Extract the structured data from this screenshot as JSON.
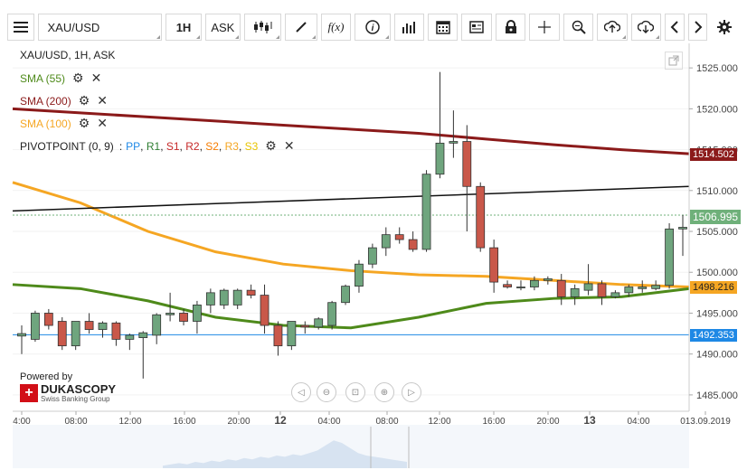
{
  "toolbar": {
    "menu_icon": "hamburger-icon",
    "symbol": "XAU/USD",
    "timeframe": "1H",
    "side": "ASK",
    "buttons": [
      "candlestick-type-icon",
      "draw-tool-icon",
      "function-icon",
      "info-icon",
      "bar-chart-icon",
      "calendar-icon",
      "document-icon",
      "lock-icon",
      "crosshair-icon",
      "zoom-icon",
      "upload-icon",
      "download-icon",
      "prev-icon",
      "next-icon",
      "settings-icon"
    ],
    "fx_label": "f(x)"
  },
  "chart_header": "XAU/USD, 1H, ASK",
  "indicators": [
    {
      "label": "SMA (55)",
      "color": "#4e8a1a"
    },
    {
      "label": "SMA (200)",
      "color": "#8b1a1a"
    },
    {
      "label": "SMA (100)",
      "color": "#f5a623"
    }
  ],
  "pivot": {
    "label": "PIVOTPOINT (0, 9)",
    "sep": ":",
    "items": [
      {
        "label": "PP",
        "color": "#1e88e5"
      },
      {
        "label": "R1",
        "color": "#2e7d32"
      },
      {
        "label": "S1",
        "color": "#c62828"
      },
      {
        "label": "R2",
        "color": "#c62828"
      },
      {
        "label": "S2",
        "color": "#f57c00"
      },
      {
        "label": "R3",
        "color": "#f5a623"
      },
      {
        "label": "S3",
        "color": "#e8c400"
      }
    ]
  },
  "powered_by": "Powered by",
  "brand": {
    "name": "DUKASCOPY",
    "sub": "Swiss Banking Group"
  },
  "price_axis": [
    "1525.000",
    "1520.000",
    "1515.000",
    "1510.000",
    "1505.000",
    "1500.000",
    "1495.000",
    "1490.000",
    "1485.000"
  ],
  "price_tags": [
    {
      "value": "1514.502",
      "color": "#8b1a1a"
    },
    {
      "value": "1506.995",
      "color": "#6fb07a"
    },
    {
      "value": "1498.216",
      "color": "#f5a623"
    },
    {
      "value": "1492.353",
      "color": "#1e88e5"
    }
  ],
  "time_axis": [
    "4:00",
    "08:00",
    "12:00",
    "16:00",
    "20:00",
    "12",
    "04:00",
    "08:00",
    "12:00",
    "16:00",
    "20:00",
    "13",
    "04:00",
    "013.09.2019"
  ],
  "nav_controls": [
    "scroll-left-icon",
    "zoom-out-icon",
    "fit-icon",
    "zoom-in-icon",
    "scroll-right-icon"
  ],
  "chart_data": {
    "type": "candlestick",
    "symbol": "XAU/USD",
    "interval": "1H",
    "ylim": [
      1483,
      1528
    ],
    "candles": [
      {
        "o": 1492.2,
        "h": 1493.5,
        "l": 1490.0,
        "c": 1492.5
      },
      {
        "o": 1491.8,
        "h": 1495.3,
        "l": 1491.5,
        "c": 1495.0
      },
      {
        "o": 1495.0,
        "h": 1495.5,
        "l": 1493.0,
        "c": 1493.5
      },
      {
        "o": 1494.0,
        "h": 1494.5,
        "l": 1490.5,
        "c": 1491.0
      },
      {
        "o": 1491.0,
        "h": 1494.0,
        "l": 1490.5,
        "c": 1494.0
      },
      {
        "o": 1494.0,
        "h": 1495.0,
        "l": 1492.5,
        "c": 1493.0
      },
      {
        "o": 1493.0,
        "h": 1494.0,
        "l": 1492.0,
        "c": 1493.8
      },
      {
        "o": 1493.8,
        "h": 1494.0,
        "l": 1491.0,
        "c": 1491.8
      },
      {
        "o": 1491.8,
        "h": 1492.5,
        "l": 1490.5,
        "c": 1492.3
      },
      {
        "o": 1492.0,
        "h": 1492.8,
        "l": 1487.0,
        "c": 1492.6
      },
      {
        "o": 1492.3,
        "h": 1495.0,
        "l": 1491.2,
        "c": 1494.8
      },
      {
        "o": 1494.8,
        "h": 1497.5,
        "l": 1494.0,
        "c": 1495.0
      },
      {
        "o": 1495.0,
        "h": 1495.5,
        "l": 1493.5,
        "c": 1494.0
      },
      {
        "o": 1494.0,
        "h": 1496.5,
        "l": 1492.5,
        "c": 1496.0
      },
      {
        "o": 1496.0,
        "h": 1498.0,
        "l": 1495.0,
        "c": 1497.5
      },
      {
        "o": 1496.0,
        "h": 1498.0,
        "l": 1495.5,
        "c": 1497.8
      },
      {
        "o": 1496.0,
        "h": 1498.0,
        "l": 1495.5,
        "c": 1497.8
      },
      {
        "o": 1497.8,
        "h": 1498.5,
        "l": 1496.8,
        "c": 1497.2
      },
      {
        "o": 1497.2,
        "h": 1498.5,
        "l": 1492.5,
        "c": 1493.5
      },
      {
        "o": 1493.5,
        "h": 1494.0,
        "l": 1489.8,
        "c": 1491.0
      },
      {
        "o": 1491.0,
        "h": 1494.0,
        "l": 1490.5,
        "c": 1494.0
      },
      {
        "o": 1493.5,
        "h": 1494.0,
        "l": 1492.5,
        "c": 1493.3
      },
      {
        "o": 1493.3,
        "h": 1494.5,
        "l": 1493.0,
        "c": 1494.3
      },
      {
        "o": 1493.5,
        "h": 1496.5,
        "l": 1493.0,
        "c": 1496.3
      },
      {
        "o": 1496.3,
        "h": 1498.5,
        "l": 1496.0,
        "c": 1498.3
      },
      {
        "o": 1498.3,
        "h": 1501.5,
        "l": 1497.5,
        "c": 1501.0
      },
      {
        "o": 1501.0,
        "h": 1503.5,
        "l": 1500.5,
        "c": 1503.0
      },
      {
        "o": 1503.0,
        "h": 1505.5,
        "l": 1502.0,
        "c": 1504.6
      },
      {
        "o": 1504.6,
        "h": 1505.5,
        "l": 1503.5,
        "c": 1504.0
      },
      {
        "o": 1504.0,
        "h": 1505.0,
        "l": 1502.5,
        "c": 1502.8
      },
      {
        "o": 1502.8,
        "h": 1512.5,
        "l": 1502.5,
        "c": 1512.0
      },
      {
        "o": 1512.0,
        "h": 1524.5,
        "l": 1511.5,
        "c": 1515.8
      },
      {
        "o": 1515.8,
        "h": 1519.8,
        "l": 1514.0,
        "c": 1516.0
      },
      {
        "o": 1516.0,
        "h": 1518.0,
        "l": 1505.0,
        "c": 1510.5
      },
      {
        "o": 1510.5,
        "h": 1511.0,
        "l": 1502.5,
        "c": 1503.0
      },
      {
        "o": 1503.0,
        "h": 1504.0,
        "l": 1497.5,
        "c": 1498.8
      },
      {
        "o": 1498.5,
        "h": 1499.0,
        "l": 1498.0,
        "c": 1498.2
      },
      {
        "o": 1498.2,
        "h": 1499.0,
        "l": 1497.8,
        "c": 1498.2
      },
      {
        "o": 1498.2,
        "h": 1499.5,
        "l": 1497.8,
        "c": 1499.0
      },
      {
        "o": 1499.0,
        "h": 1499.5,
        "l": 1498.5,
        "c": 1499.2
      },
      {
        "o": 1499.0,
        "h": 1499.8,
        "l": 1496.0,
        "c": 1497.0
      },
      {
        "o": 1497.0,
        "h": 1498.5,
        "l": 1496.0,
        "c": 1498.0
      },
      {
        "o": 1497.8,
        "h": 1501.0,
        "l": 1497.2,
        "c": 1498.6
      },
      {
        "o": 1498.6,
        "h": 1499.0,
        "l": 1496.0,
        "c": 1497.0
      },
      {
        "o": 1497.0,
        "h": 1497.8,
        "l": 1496.8,
        "c": 1497.5
      },
      {
        "o": 1497.5,
        "h": 1498.5,
        "l": 1497.0,
        "c": 1498.2
      },
      {
        "o": 1498.0,
        "h": 1499.0,
        "l": 1497.5,
        "c": 1498.2
      },
      {
        "o": 1498.0,
        "h": 1499.0,
        "l": 1497.8,
        "c": 1498.4
      },
      {
        "o": 1498.4,
        "h": 1506.0,
        "l": 1498.0,
        "c": 1505.3
      },
      {
        "o": 1505.3,
        "h": 1507.0,
        "l": 1502.0,
        "c": 1505.5
      }
    ],
    "sma200": [
      1520.0,
      1519.5,
      1519.0,
      1518.5,
      1518.0,
      1517.5,
      1517.0,
      1516.3,
      1515.6,
      1515.0,
      1514.5
    ],
    "sma100": [
      1511.0,
      1508.5,
      1505.0,
      1502.5,
      1501.0,
      1500.2,
      1499.7,
      1499.5,
      1499.0,
      1498.5,
      1498.2
    ],
    "sma55": [
      1498.5,
      1498.0,
      1496.5,
      1494.5,
      1493.5,
      1493.2,
      1494.5,
      1496.2,
      1496.8,
      1497.0,
      1498.0
    ],
    "trendline": [
      1507.5,
      1510.5
    ],
    "pp_level": 1492.353,
    "current_level": 1506.995
  }
}
